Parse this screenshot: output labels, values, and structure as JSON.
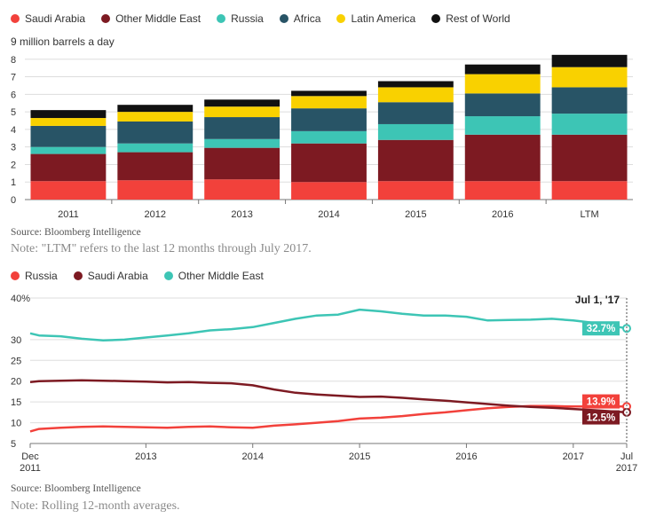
{
  "chart_data": [
    {
      "type": "bar",
      "stacked": true,
      "title": "",
      "ylabel": "9 million barrels a day",
      "ylim": [
        0,
        9
      ],
      "yticks": [
        "0",
        "1",
        "2",
        "3",
        "4",
        "5",
        "6",
        "7",
        "8"
      ],
      "categories": [
        "2011",
        "2012",
        "2013",
        "2014",
        "2015",
        "2016",
        "LTM"
      ],
      "series": [
        {
          "name": "Saudi Arabia",
          "color": "#f2413b",
          "values": [
            1.05,
            1.1,
            1.15,
            1.0,
            1.05,
            1.05,
            1.05
          ]
        },
        {
          "name": "Other Middle East",
          "color": "#7d1a22",
          "values": [
            1.55,
            1.6,
            1.8,
            2.2,
            2.35,
            2.65,
            2.65
          ]
        },
        {
          "name": "Russia",
          "color": "#3dc5b5",
          "values": [
            0.4,
            0.5,
            0.5,
            0.7,
            0.9,
            1.05,
            1.2
          ]
        },
        {
          "name": "Africa",
          "color": "#285466",
          "values": [
            1.2,
            1.25,
            1.25,
            1.3,
            1.25,
            1.3,
            1.5
          ]
        },
        {
          "name": "Latin America",
          "color": "#f9d100",
          "values": [
            0.45,
            0.55,
            0.6,
            0.7,
            0.85,
            1.1,
            1.15
          ]
        },
        {
          "name": "Rest of World",
          "color": "#111111",
          "values": [
            0.45,
            0.4,
            0.4,
            0.3,
            0.35,
            0.55,
            0.7
          ]
        }
      ],
      "legend_position": "top-left",
      "source": "Source: Bloomberg Intelligence",
      "note": "Note: \"LTM\" refers to the last 12 months through July 2017."
    },
    {
      "type": "line",
      "ylim": [
        5,
        40
      ],
      "yticks": [
        "5",
        "10",
        "15",
        "20",
        "25",
        "30",
        "40%"
      ],
      "xlim": [
        2011.917,
        2017.5
      ],
      "xticks": [
        {
          "value": 2011.917,
          "line1": "Dec",
          "line2": "2011"
        },
        {
          "value": 2013.0,
          "line1": "2013",
          "line2": ""
        },
        {
          "value": 2014.0,
          "line1": "2014",
          "line2": ""
        },
        {
          "value": 2015.0,
          "line1": "2015",
          "line2": ""
        },
        {
          "value": 2016.0,
          "line1": "2016",
          "line2": ""
        },
        {
          "value": 2017.0,
          "line1": "2017",
          "line2": ""
        },
        {
          "value": 2017.5,
          "line1": "Jul",
          "line2": "2017"
        }
      ],
      "series": [
        {
          "name": "Russia",
          "color": "#f2413b",
          "end_label": "13.9%",
          "x": [
            2011.917,
            2012.0,
            2012.2,
            2012.4,
            2012.6,
            2012.8,
            2013.0,
            2013.2,
            2013.4,
            2013.6,
            2013.8,
            2014.0,
            2014.2,
            2014.4,
            2014.6,
            2014.8,
            2015.0,
            2015.2,
            2015.4,
            2015.6,
            2015.8,
            2016.0,
            2016.2,
            2016.4,
            2016.6,
            2016.8,
            2017.0,
            2017.2,
            2017.5
          ],
          "y": [
            7.9,
            8.5,
            8.8,
            9.0,
            9.1,
            9.0,
            8.9,
            8.8,
            9.0,
            9.1,
            8.9,
            8.8,
            9.3,
            9.6,
            10.0,
            10.4,
            11.0,
            11.2,
            11.6,
            12.1,
            12.5,
            13.0,
            13.5,
            13.8,
            14.0,
            14.0,
            13.9,
            13.9,
            13.9
          ]
        },
        {
          "name": "Saudi Arabia",
          "color": "#7d1a22",
          "end_label": "12.5%",
          "x": [
            2011.917,
            2012.0,
            2012.2,
            2012.4,
            2012.6,
            2012.8,
            2013.0,
            2013.2,
            2013.4,
            2013.6,
            2013.8,
            2014.0,
            2014.2,
            2014.4,
            2014.6,
            2014.8,
            2015.0,
            2015.2,
            2015.4,
            2015.6,
            2015.8,
            2016.0,
            2016.2,
            2016.4,
            2016.6,
            2016.8,
            2017.0,
            2017.2,
            2017.5
          ],
          "y": [
            19.8,
            20.0,
            20.1,
            20.2,
            20.1,
            20.0,
            19.9,
            19.7,
            19.8,
            19.6,
            19.5,
            19.0,
            18.0,
            17.2,
            16.8,
            16.5,
            16.2,
            16.3,
            16.0,
            15.6,
            15.3,
            14.9,
            14.5,
            14.1,
            13.8,
            13.6,
            13.3,
            13.0,
            12.5
          ]
        },
        {
          "name": "Other Middle East",
          "color": "#3dc5b5",
          "end_label": "32.7%",
          "x": [
            2011.917,
            2012.0,
            2012.2,
            2012.4,
            2012.6,
            2012.8,
            2013.0,
            2013.2,
            2013.4,
            2013.6,
            2013.8,
            2014.0,
            2014.2,
            2014.4,
            2014.6,
            2014.8,
            2015.0,
            2015.2,
            2015.4,
            2015.6,
            2015.8,
            2016.0,
            2016.2,
            2016.4,
            2016.6,
            2016.8,
            2017.0,
            2017.2,
            2017.5
          ],
          "y": [
            31.5,
            31.0,
            30.8,
            30.2,
            29.8,
            30.0,
            30.5,
            31.0,
            31.5,
            32.2,
            32.5,
            33.0,
            34.0,
            35.0,
            35.8,
            36.0,
            37.2,
            36.8,
            36.2,
            35.8,
            35.8,
            35.5,
            34.6,
            34.7,
            34.8,
            35.0,
            34.6,
            34.0,
            32.7
          ]
        }
      ],
      "marker_label": "Jul 1, '17",
      "legend_position": "top-left",
      "source": "Source: Bloomberg Intelligence",
      "note": "Note: Rolling 12-month averages."
    }
  ]
}
